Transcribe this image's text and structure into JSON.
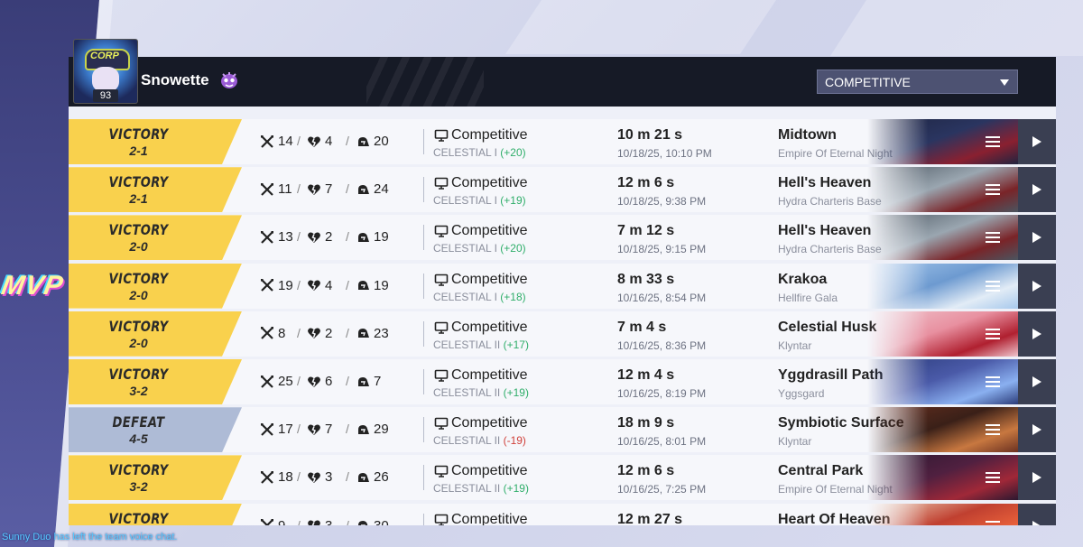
{
  "player": {
    "name": "Snowette",
    "level": "93",
    "avatar_cap_text": "CORP"
  },
  "banner": {
    "mvp_text": "MVP"
  },
  "mode_filter": {
    "selected": "COMPETITIVE"
  },
  "chat": {
    "message": "Sunny Duo has left the team voice chat."
  },
  "icons": {
    "kills": "crossed-swords-icon",
    "deaths": "broken-heart-icon",
    "assists": "helmet-icon",
    "mode": "monitor-icon",
    "menu": "menu-lines-icon",
    "play": "play-icon",
    "dropdown": "chevron-down-icon"
  },
  "colors": {
    "victory": "#f9d14d",
    "defeat": "#aebbd6",
    "rank_gain": "#2fae6a",
    "rank_loss": "#d0403a",
    "header": "#161a26"
  },
  "matches": [
    {
      "result": "VICTORY",
      "score": "2-1",
      "kills": "14",
      "deaths": "4",
      "assists": "20",
      "mode": "Competitive",
      "rank": "CELESTIAL I",
      "rank_change": "(+20)",
      "change_sign": "pos",
      "duration": "10 m 21 s",
      "date": "10/18/25, 10:10 PM",
      "map": "Midtown",
      "map_sub": "Empire Of Eternal Night",
      "map_colors": [
        "#1e2440",
        "#8a2030",
        "#2a3560"
      ]
    },
    {
      "result": "VICTORY",
      "score": "2-1",
      "kills": "11",
      "deaths": "7",
      "assists": "24",
      "mode": "Competitive",
      "rank": "CELESTIAL I",
      "rank_change": "(+19)",
      "change_sign": "pos",
      "duration": "12 m 6 s",
      "date": "10/18/25, 9:38 PM",
      "map": "Hell's Heaven",
      "map_sub": "Hydra Charteris Base",
      "map_colors": [
        "#4a5560",
        "#7a2428",
        "#9aa6b0"
      ]
    },
    {
      "result": "VICTORY",
      "score": "2-0",
      "kills": "13",
      "deaths": "2",
      "assists": "19",
      "mode": "Competitive",
      "rank": "CELESTIAL I",
      "rank_change": "(+20)",
      "change_sign": "pos",
      "duration": "7 m 12 s",
      "date": "10/18/25, 9:15 PM",
      "map": "Hell's Heaven",
      "map_sub": "Hydra Charteris Base",
      "map_colors": [
        "#4a5560",
        "#7a2428",
        "#9aa6b0"
      ]
    },
    {
      "result": "VICTORY",
      "score": "2-0",
      "kills": "19",
      "deaths": "4",
      "assists": "19",
      "mode": "Competitive",
      "rank": "CELESTIAL I",
      "rank_change": "(+18)",
      "change_sign": "pos",
      "duration": "8 m 33 s",
      "date": "10/16/25, 8:54 PM",
      "map": "Krakoa",
      "map_sub": "Hellfire Gala",
      "map_colors": [
        "#a6c8ec",
        "#e2ecf6",
        "#6d9ad0"
      ]
    },
    {
      "result": "VICTORY",
      "score": "2-0",
      "kills": "8",
      "deaths": "2",
      "assists": "23",
      "mode": "Competitive",
      "rank": "CELESTIAL II",
      "rank_change": "(+17)",
      "change_sign": "pos",
      "duration": "7 m 4 s",
      "date": "10/16/25, 8:36 PM",
      "map": "Celestial Husk",
      "map_sub": "Klyntar",
      "map_colors": [
        "#f0c8d0",
        "#b02030",
        "#e890a0"
      ]
    },
    {
      "result": "VICTORY",
      "score": "3-2",
      "kills": "25",
      "deaths": "6",
      "assists": "7",
      "mode": "Competitive",
      "rank": "CELESTIAL II",
      "rank_change": "(+19)",
      "change_sign": "pos",
      "duration": "12 m 4 s",
      "date": "10/16/25, 8:19 PM",
      "map": "Yggdrasill Path",
      "map_sub": "Yggsgard",
      "map_colors": [
        "#2a3a78",
        "#8ab0f0",
        "#4a5aa8"
      ]
    },
    {
      "result": "DEFEAT",
      "score": "4-5",
      "kills": "17",
      "deaths": "7",
      "assists": "29",
      "mode": "Competitive",
      "rank": "CELESTIAL II",
      "rank_change": "(-19)",
      "change_sign": "neg",
      "duration": "18 m 9 s",
      "date": "10/16/25, 8:01 PM",
      "map": "Symbiotic Surface",
      "map_sub": "Klyntar",
      "map_colors": [
        "#6a3020",
        "#c87840",
        "#3a2018"
      ]
    },
    {
      "result": "VICTORY",
      "score": "3-2",
      "kills": "18",
      "deaths": "3",
      "assists": "26",
      "mode": "Competitive",
      "rank": "CELESTIAL II",
      "rank_change": "(+19)",
      "change_sign": "pos",
      "duration": "12 m 6 s",
      "date": "10/16/25, 7:25 PM",
      "map": "Central Park",
      "map_sub": "Empire Of Eternal Night",
      "map_colors": [
        "#2a1830",
        "#a02838",
        "#502040"
      ]
    },
    {
      "result": "VICTORY",
      "score": "",
      "kills": "9",
      "deaths": "3",
      "assists": "30",
      "mode": "Competitive",
      "rank": "",
      "rank_change": "",
      "change_sign": "pos",
      "duration": "12 m 27 s",
      "date": "",
      "map": "Heart Of Heaven",
      "map_sub": "",
      "map_colors": [
        "#f0d8c0",
        "#e8603a",
        "#c04030"
      ]
    }
  ]
}
